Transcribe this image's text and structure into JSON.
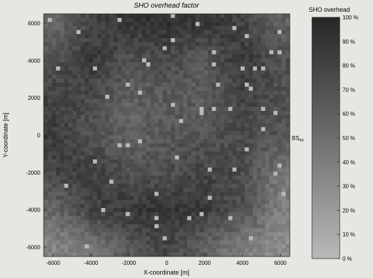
{
  "chart_data": {
    "type": "heatmap",
    "title": "SHO overhead factor",
    "xlabel": "X-coordinate [m]",
    "ylabel": "Y-coordinate [m]",
    "xlim": [
      -6500,
      6500
    ],
    "ylim": [
      -6500,
      6500
    ],
    "x_ticks": [
      -6000,
      -4000,
      -2000,
      0,
      2000,
      4000,
      6000
    ],
    "y_ticks": [
      6000,
      4000,
      2000,
      0,
      -2000,
      -4000,
      -6000
    ],
    "x_tick_labels": [
      "-6000",
      "-4000",
      "-2000",
      "0",
      "2000",
      "4000",
      "6000"
    ],
    "y_tick_labels": [
      "6000",
      "4000",
      "2000",
      "0",
      "-2000",
      "-4000",
      "-6000"
    ],
    "colorbar": {
      "title": "SHO overhead",
      "range": [
        0,
        100
      ],
      "ticks": [
        100,
        90,
        80,
        70,
        60,
        50,
        40,
        30,
        20,
        10,
        0
      ],
      "tick_labels": [
        "100 %",
        "90 %",
        "80 %",
        "70 %",
        "60 %",
        "50 %",
        "40 %",
        "30 %",
        "20 %",
        "10 %",
        "0 %"
      ],
      "color_high": "#262626",
      "color_low": "#b4b4b4"
    },
    "annotations": [
      {
        "text": "BS",
        "sub": "40",
        "x": 7000,
        "y": 0
      }
    ],
    "field": {
      "description_values": "approximate SHO overhead (%) on a coarse grid, rows from y=6000 down to y=-6000, columns from x=-6000 to x=6000",
      "x": [
        -6000,
        -4000,
        -2000,
        0,
        2000,
        4000,
        6000
      ],
      "y": [
        6000,
        4000,
        2000,
        0,
        -2000,
        -4000,
        -6000
      ],
      "values": [
        [
          55,
          80,
          90,
          92,
          88,
          80,
          60
        ],
        [
          70,
          88,
          70,
          75,
          65,
          88,
          70
        ],
        [
          80,
          75,
          60,
          65,
          62,
          80,
          72
        ],
        [
          85,
          70,
          60,
          65,
          70,
          75,
          68
        ],
        [
          78,
          85,
          70,
          72,
          80,
          75,
          45
        ],
        [
          55,
          80,
          88,
          90,
          85,
          70,
          40
        ],
        [
          35,
          45,
          65,
          80,
          60,
          40,
          30
        ]
      ]
    }
  }
}
